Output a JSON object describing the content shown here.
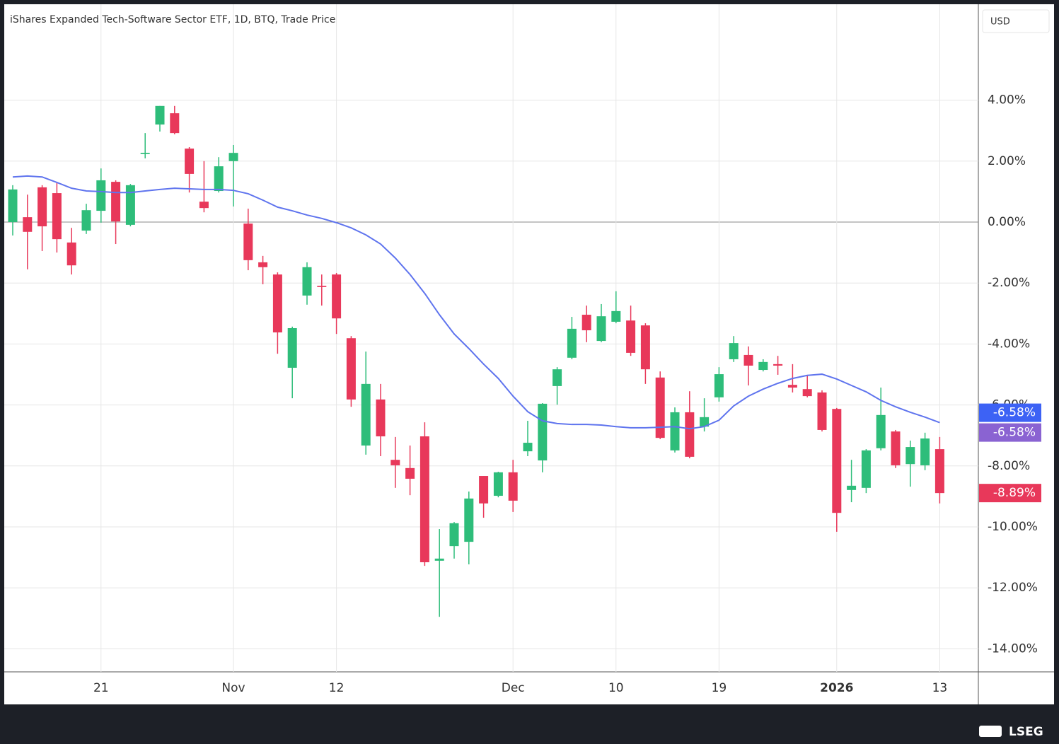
{
  "chart_data": {
    "type": "candlestick",
    "title": "iShares Expanded Tech-Software Sector ETF, 1D, BTQ, Trade Price",
    "currency": "USD",
    "categories": [
      null,
      null,
      null,
      null,
      null,
      null,
      "21",
      null,
      null,
      null,
      null,
      null,
      null,
      null,
      null,
      "Nov",
      null,
      null,
      null,
      null,
      null,
      null,
      "12",
      null,
      null,
      null,
      null,
      null,
      null,
      null,
      null,
      null,
      null,
      null,
      "Dec",
      null,
      null,
      null,
      null,
      null,
      null,
      "10",
      null,
      null,
      null,
      null,
      null,
      null,
      "19",
      null,
      null,
      null,
      null,
      null,
      null,
      null,
      "2026",
      null,
      null,
      null,
      null,
      null,
      null,
      "13"
    ],
    "open": [
      0,
      0.16,
      1.14,
      0.95,
      -0.67,
      -0.28,
      0.37,
      1.32,
      -0.09,
      2.23,
      3.2,
      3.57,
      2.41,
      0.67,
      1.02,
      2.0,
      -0.05,
      -1.32,
      -1.72,
      -4.78,
      -2.41,
      -2.09,
      -1.72,
      -3.81,
      -7.33,
      -5.82,
      -7.8,
      -8.07,
      -7.03,
      -11.11,
      -10.63,
      -10.49,
      -8.33,
      -8.98,
      -8.21,
      -7.52,
      -7.82,
      -5.38,
      -4.45,
      -3.04,
      -3.9,
      -3.27,
      -3.23,
      -3.39,
      -5.1,
      -7.49,
      -6.24,
      -6.71,
      -5.75,
      -4.5,
      -4.36,
      -4.85,
      -4.66,
      -5.34,
      -5.48,
      -5.59,
      -6.13,
      -8.79,
      -8.72,
      -7.42,
      -6.87,
      -7.94,
      -7.98,
      -7.45
    ],
    "high": [
      1.21,
      0.9,
      1.21,
      1.3,
      -0.19,
      0.6,
      1.76,
      1.37,
      1.25,
      2.92,
      3.81,
      3.81,
      2.46,
      2.0,
      2.13,
      2.53,
      0.44,
      -1.11,
      -1.65,
      -3.43,
      -1.32,
      -1.72,
      -1.67,
      -3.74,
      -4.25,
      -5.31,
      -7.05,
      -7.33,
      -6.57,
      -10.07,
      -9.84,
      -8.84,
      -8.33,
      -8.19,
      -7.8,
      -6.52,
      -5.94,
      -4.76,
      -3.11,
      -2.74,
      -2.69,
      -2.27,
      -2.74,
      -3.32,
      -4.9,
      -6.08,
      -5.55,
      -5.78,
      -4.76,
      -3.74,
      -4.08,
      -4.5,
      -4.39,
      -4.66,
      -5.01,
      -5.52,
      -6.1,
      -7.8,
      -7.45,
      -5.43,
      -6.82,
      -7.17,
      -6.91,
      -7.05
    ],
    "low": [
      -0.44,
      -1.55,
      -0.95,
      -1.0,
      -1.72,
      -0.39,
      -0.02,
      -0.72,
      -0.14,
      2.09,
      2.97,
      2.88,
      0.97,
      0.32,
      0.97,
      0.51,
      -1.58,
      -2.04,
      -4.32,
      -5.78,
      -2.71,
      -2.74,
      -3.67,
      -6.06,
      -7.63,
      -7.68,
      -8.72,
      -8.96,
      -11.28,
      -12.95,
      -11.04,
      -11.23,
      -9.7,
      -9.03,
      -9.51,
      -7.68,
      -8.21,
      -5.99,
      -4.5,
      -3.94,
      -3.94,
      -3.32,
      -4.39,
      -5.31,
      -7.12,
      -7.56,
      -7.75,
      -6.87,
      -5.89,
      -4.59,
      -5.36,
      -4.9,
      -5.01,
      -5.59,
      -5.75,
      -6.87,
      -10.16,
      -9.19,
      -8.89,
      -7.49,
      -8.07,
      -8.68,
      -8.14,
      -9.23
    ],
    "close": [
      1.07,
      -0.32,
      -0.14,
      -0.56,
      -1.42,
      0.39,
      1.37,
      0.02,
      1.21,
      2.27,
      3.81,
      2.92,
      1.58,
      0.46,
      1.83,
      2.27,
      -1.25,
      -1.48,
      -3.62,
      -3.48,
      -1.48,
      -2.13,
      -3.16,
      -5.82,
      -5.31,
      -7.03,
      -7.98,
      -8.42,
      -11.16,
      -11.04,
      -9.88,
      -9.07,
      -9.23,
      -8.21,
      -9.14,
      -7.24,
      -5.96,
      -4.83,
      -3.5,
      -3.55,
      -3.09,
      -2.92,
      -4.29,
      -4.83,
      -7.08,
      -6.24,
      -7.7,
      -6.4,
      -4.99,
      -3.97,
      -4.71,
      -4.59,
      -4.71,
      -5.43,
      -5.71,
      -6.82,
      -9.54,
      -8.65,
      -7.49,
      -6.33,
      -7.98,
      -7.38,
      -7.1,
      -8.89
    ],
    "up_color": "#2ebd7a",
    "down_color": "#e8385a",
    "moving_average": {
      "color": "#5f74ee",
      "values": [
        1.48,
        1.51,
        1.48,
        1.3,
        1.11,
        1.02,
        1.0,
        0.97,
        0.97,
        1.02,
        1.07,
        1.11,
        1.09,
        1.07,
        1.07,
        1.04,
        0.93,
        0.72,
        0.49,
        0.37,
        0.23,
        0.12,
        -0.02,
        -0.19,
        -0.42,
        -0.72,
        -1.18,
        -1.72,
        -2.34,
        -3.04,
        -3.67,
        -4.15,
        -4.66,
        -5.13,
        -5.71,
        -6.22,
        -6.52,
        -6.61,
        -6.64,
        -6.64,
        -6.66,
        -6.71,
        -6.75,
        -6.75,
        -6.73,
        -6.71,
        -6.78,
        -6.71,
        -6.5,
        -6.03,
        -5.71,
        -5.48,
        -5.29,
        -5.13,
        -5.03,
        -4.99,
        -5.15,
        -5.36,
        -5.57,
        -5.85,
        -6.06,
        -6.24,
        -6.4,
        -6.58
      ]
    },
    "ylim": [
      -14.71,
      7.1
    ],
    "yticks": [
      {
        "value": 4,
        "label": "4.00%"
      },
      {
        "value": 2,
        "label": "2.00%"
      },
      {
        "value": 0,
        "label": "0.00%"
      },
      {
        "value": -2,
        "label": "-2.00%"
      },
      {
        "value": -4,
        "label": "-4.00%"
      },
      {
        "value": -6,
        "label": "-6.00%"
      },
      {
        "value": -8,
        "label": "-8.00%"
      },
      {
        "value": -10,
        "label": "-10.00%"
      },
      {
        "value": -12,
        "label": "-12.00%"
      },
      {
        "value": -14,
        "label": "-14.00%"
      }
    ],
    "price_labels": [
      {
        "value": -6.58,
        "label": "-6.58%",
        "color": "#3d62f5"
      },
      {
        "value": -6.58,
        "label": "-6.58%",
        "color": "#8a63d2"
      },
      {
        "value": -8.89,
        "label": "-8.89%",
        "color": "#e8385a"
      }
    ],
    "grid": true
  },
  "footer": {
    "brand": "LSEG"
  }
}
